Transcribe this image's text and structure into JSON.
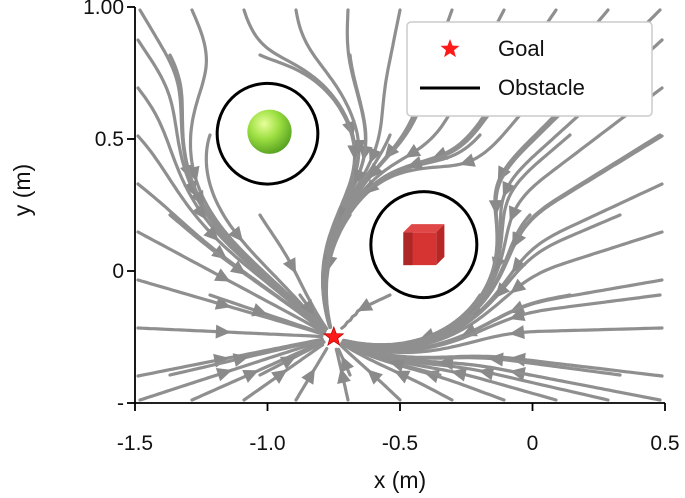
{
  "chart_data": {
    "type": "streamplot",
    "title": "",
    "xlabel": "x (m)",
    "ylabel": "y (m)",
    "xlim": [
      -1.5,
      0.5
    ],
    "ylim": [
      -0.5,
      1.0
    ],
    "xticks": [
      -1.5,
      -1.0,
      -0.5,
      0,
      0.5
    ],
    "xtick_labels": [
      "-1.5",
      "-1.0",
      "-0.5",
      "0",
      "0.5"
    ],
    "yticks": [
      -0.5,
      0,
      0.5,
      1.0
    ],
    "ytick_labels": [
      "-",
      "0",
      "0.5",
      "1.00"
    ],
    "goal": {
      "x": -0.75,
      "y": -0.25,
      "label": "Goal",
      "color": "#ff1a1a"
    },
    "obstacles": [
      {
        "name": "sphere",
        "cx": -1.0,
        "cy": 0.52,
        "r": 0.19,
        "color": "#8fd63c"
      },
      {
        "name": "cube",
        "cx": -0.41,
        "cy": 0.1,
        "r": 0.2,
        "color": "#d93030"
      }
    ],
    "legend": {
      "placement": "top-right",
      "entries": [
        {
          "label": "Goal",
          "marker": "star",
          "color": "#ff1a1a"
        },
        {
          "label": "Obstacle",
          "marker": "line",
          "color": "#000000"
        }
      ]
    },
    "stream_color": "#8f8f8f"
  }
}
